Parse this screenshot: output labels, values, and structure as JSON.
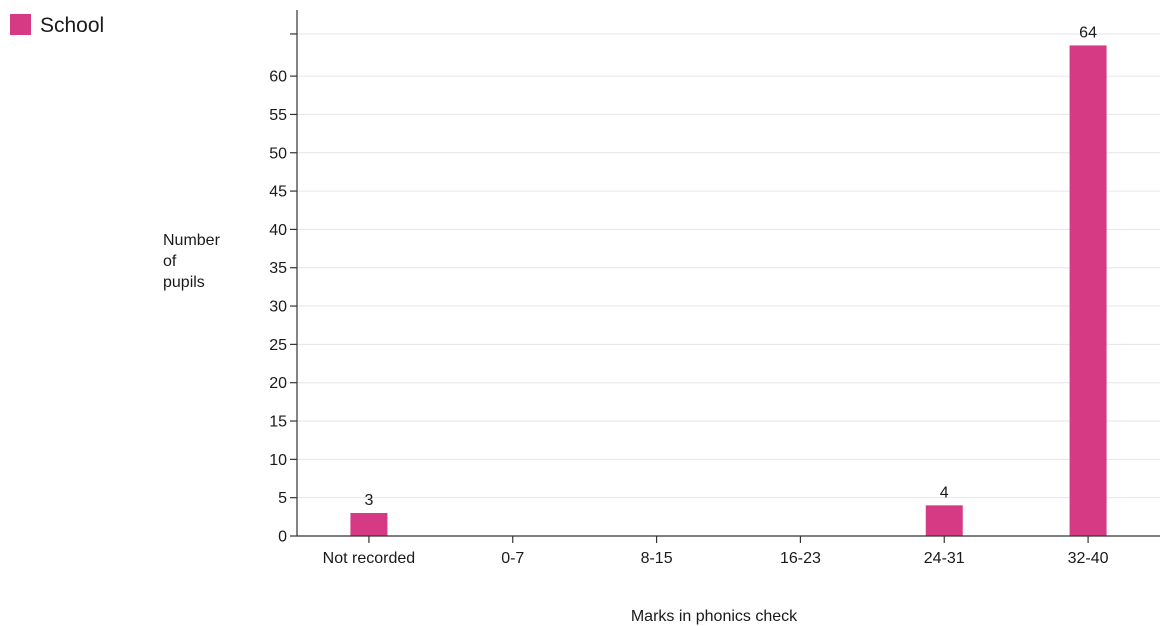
{
  "chart_data": {
    "type": "bar",
    "categories": [
      "Not recorded",
      "0-7",
      "8-15",
      "16-23",
      "24-31",
      "32-40"
    ],
    "series": [
      {
        "name": "School",
        "values": [
          3,
          0,
          0,
          0,
          4,
          64
        ],
        "color": "#d63a84"
      }
    ],
    "data_labels": [
      "3",
      "",
      "",
      "",
      "4",
      "64"
    ],
    "xlabel": "Marks in phonics check",
    "ylabel": [
      "Number",
      "of",
      "pupils"
    ],
    "yticks": [
      0,
      5,
      10,
      15,
      20,
      25,
      30,
      35,
      40,
      45,
      50,
      55,
      60
    ],
    "ylim": [
      0,
      69
    ],
    "grid": true,
    "legend_position": "top-left"
  }
}
